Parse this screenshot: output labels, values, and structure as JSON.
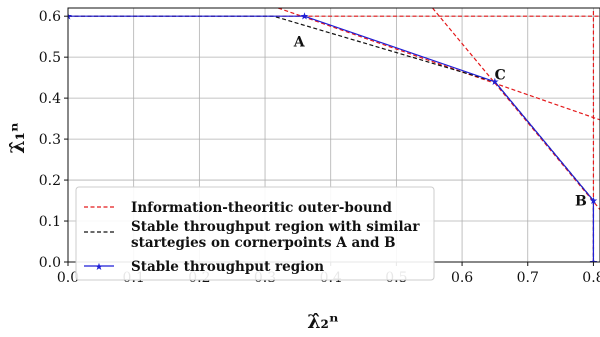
{
  "chart_data": {
    "type": "line",
    "xlabel": "λ̂₂ⁿ",
    "ylabel": "λ̂₁ⁿ",
    "xlim": [
      0.0,
      0.81
    ],
    "ylim": [
      0.0,
      0.62
    ],
    "grid": true,
    "legend_placement": "lower-left",
    "x_ticks": [
      "0.0",
      "0.1",
      "0.2",
      "0.3",
      "0.4",
      "0.5",
      "0.6",
      "0.7",
      "0.8"
    ],
    "y_ticks": [
      "0.0",
      "0.1",
      "0.2",
      "0.3",
      "0.4",
      "0.5",
      "0.6"
    ],
    "series": [
      {
        "name": "Information-theoritic outer-bound",
        "color": "#e41a1c",
        "style": "dashed",
        "segments": [
          [
            [
              0.0,
              0.6
            ],
            [
              0.81,
              0.6
            ]
          ],
          [
            [
              0.8,
              0.0
            ],
            [
              0.8,
              0.62
            ]
          ],
          [
            [
              0.32,
              0.62
            ],
            [
              0.81,
              0.347
            ]
          ],
          [
            [
              0.555,
              0.62
            ],
            [
              0.81,
              0.128
            ]
          ]
        ]
      },
      {
        "name": "Stable throughput region with similar startegies on cornerpoints A and B",
        "legend_lines": [
          "Stable throughput region with similar",
          "startegies on cornerpoints A and B"
        ],
        "color": "#111111",
        "style": "dashed",
        "x": [
          0.0,
          0.313,
          0.65,
          0.8,
          0.8
        ],
        "y": [
          0.6,
          0.6,
          0.44,
          0.15,
          0.0
        ]
      },
      {
        "name": "Stable throughput region",
        "color": "#1f1fd6",
        "style": "solid",
        "marker": "star",
        "x": [
          0.0,
          0.313,
          0.36,
          0.65,
          0.8,
          0.8
        ],
        "y": [
          0.6,
          0.6,
          0.6,
          0.44,
          0.15,
          0.0
        ],
        "marker_points": [
          [
            0.0,
            0.6
          ],
          [
            0.36,
            0.6
          ],
          [
            0.65,
            0.44
          ],
          [
            0.8,
            0.15
          ],
          [
            0.8,
            0.0
          ]
        ]
      }
    ],
    "annotations": [
      {
        "text": "A",
        "x": 0.352,
        "y": 0.538
      },
      {
        "text": "C",
        "x": 0.658,
        "y": 0.458
      },
      {
        "text": "B",
        "x": 0.781,
        "y": 0.15
      }
    ]
  }
}
